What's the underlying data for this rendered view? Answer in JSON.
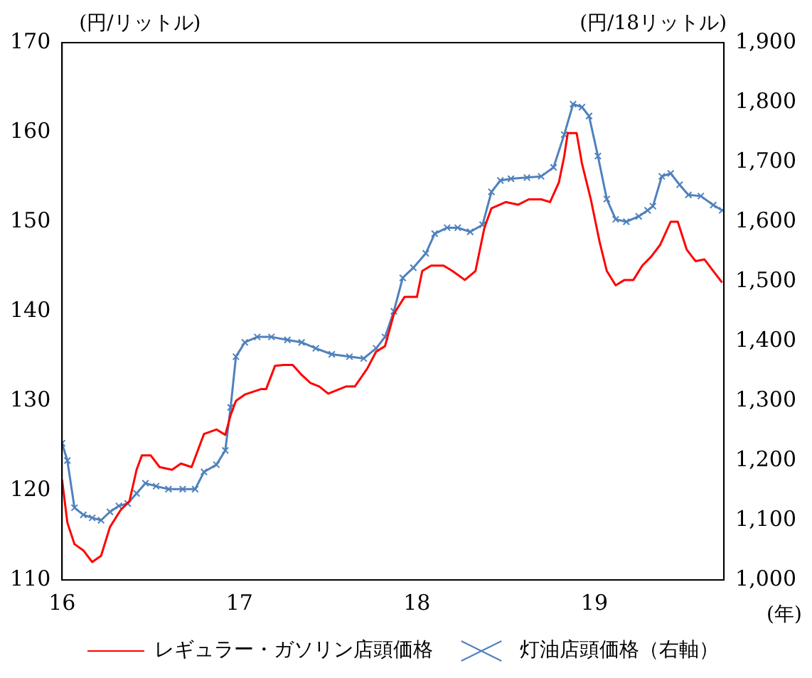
{
  "chart_data": {
    "type": "line",
    "xlabel": "(年)",
    "ylabel": "(円/リットル)",
    "y2label": "(円/18リットル)",
    "xlim": [
      16,
      19.73
    ],
    "xticks": [
      16,
      17,
      18,
      19
    ],
    "ylim": [
      110,
      170
    ],
    "yticks": [
      110,
      120,
      130,
      140,
      150,
      160,
      170
    ],
    "y2lim": [
      1000,
      1900
    ],
    "y2ticks": [
      {
        "value": 1000,
        "label": "1,000"
      },
      {
        "value": 1100,
        "label": "1,100"
      },
      {
        "value": 1200,
        "label": "1,200"
      },
      {
        "value": 1300,
        "label": "1,300"
      },
      {
        "value": 1400,
        "label": "1,400"
      },
      {
        "value": 1500,
        "label": "1,500"
      },
      {
        "value": 1600,
        "label": "1,600"
      },
      {
        "value": 1700,
        "label": "1,700"
      },
      {
        "value": 1800,
        "label": "1,800"
      },
      {
        "value": 1900,
        "label": "1,900"
      }
    ],
    "legend": "bottom",
    "grid": false,
    "series": [
      {
        "name": "レギュラー・ガソリン店頭価格",
        "color": "#ff0000",
        "marker": "none",
        "x": [
          16.0,
          16.03,
          16.07,
          16.12,
          16.17,
          16.22,
          16.27,
          16.33,
          16.38,
          16.42,
          16.45,
          16.5,
          16.55,
          16.62,
          16.67,
          16.73,
          16.8,
          16.87,
          16.92,
          16.95,
          16.98,
          17.03,
          17.12,
          17.15,
          17.2,
          17.25,
          17.3,
          17.35,
          17.4,
          17.45,
          17.5,
          17.6,
          17.65,
          17.72,
          17.77,
          17.82,
          17.87,
          17.93,
          18.0,
          18.03,
          18.08,
          18.15,
          18.2,
          18.27,
          18.33,
          18.38,
          18.42,
          18.5,
          18.57,
          18.63,
          18.7,
          18.75,
          18.8,
          18.83,
          18.85,
          18.9,
          18.93,
          18.98,
          19.03,
          19.07,
          19.12,
          19.17,
          19.22,
          19.27,
          19.32,
          19.37,
          19.43,
          19.47,
          19.52,
          19.57,
          19.62,
          19.67,
          19.72
        ],
        "values": [
          121.2,
          116.4,
          114,
          113.3,
          112,
          112.7,
          115.9,
          117.8,
          118.8,
          122.3,
          123.9,
          123.9,
          122.6,
          122.3,
          123,
          122.6,
          126.3,
          126.8,
          126.2,
          128.4,
          130,
          130.7,
          131.3,
          131.3,
          133.9,
          134,
          134,
          132.9,
          132,
          131.6,
          130.8,
          131.6,
          131.6,
          133.6,
          135.5,
          136.1,
          139.7,
          141.6,
          141.6,
          144.5,
          145.1,
          145.1,
          144.5,
          143.5,
          144.5,
          149.3,
          151.5,
          152.2,
          151.9,
          152.5,
          152.5,
          152.2,
          154.4,
          157.3,
          159.9,
          159.9,
          156.5,
          152.5,
          147.7,
          144.5,
          142.9,
          143.5,
          143.5,
          145.1,
          146.1,
          147.4,
          150,
          150,
          146.9,
          145.6,
          145.8,
          144.5,
          143.2
        ]
      },
      {
        "name": "灯油店頭価格（右軸）",
        "color": "#4f81bd",
        "marker": "cross",
        "axis": "y2",
        "x": [
          16.0,
          16.03,
          16.07,
          16.12,
          16.17,
          16.22,
          16.27,
          16.32,
          16.37,
          16.42,
          16.47,
          16.53,
          16.6,
          16.68,
          16.75,
          16.8,
          16.87,
          16.92,
          16.95,
          16.98,
          17.03,
          17.1,
          17.18,
          17.27,
          17.35,
          17.43,
          17.52,
          17.62,
          17.7,
          17.77,
          17.82,
          17.87,
          17.92,
          17.98,
          18.05,
          18.1,
          18.17,
          18.23,
          18.3,
          18.37,
          18.42,
          18.47,
          18.53,
          18.62,
          18.7,
          18.77,
          18.83,
          18.88,
          18.93,
          18.97,
          19.02,
          19.07,
          19.12,
          19.18,
          19.25,
          19.3,
          19.33,
          19.38,
          19.43,
          19.48,
          19.53,
          19.6,
          19.67,
          19.72
        ],
        "values": [
          1229,
          1200,
          1121,
          1109,
          1104,
          1100,
          1114,
          1124,
          1128,
          1145,
          1162,
          1157,
          1152,
          1152,
          1152,
          1181,
          1193,
          1217,
          1289,
          1374,
          1398,
          1407,
          1407,
          1402,
          1398,
          1388,
          1378,
          1374,
          1371,
          1388,
          1407,
          1450,
          1506,
          1523,
          1547,
          1580,
          1590,
          1590,
          1583,
          1595,
          1650,
          1669,
          1672,
          1674,
          1676,
          1691,
          1746,
          1797,
          1792,
          1777,
          1710,
          1638,
          1604,
          1600,
          1609,
          1619,
          1626,
          1676,
          1681,
          1662,
          1645,
          1643,
          1628,
          1619
        ]
      }
    ]
  }
}
